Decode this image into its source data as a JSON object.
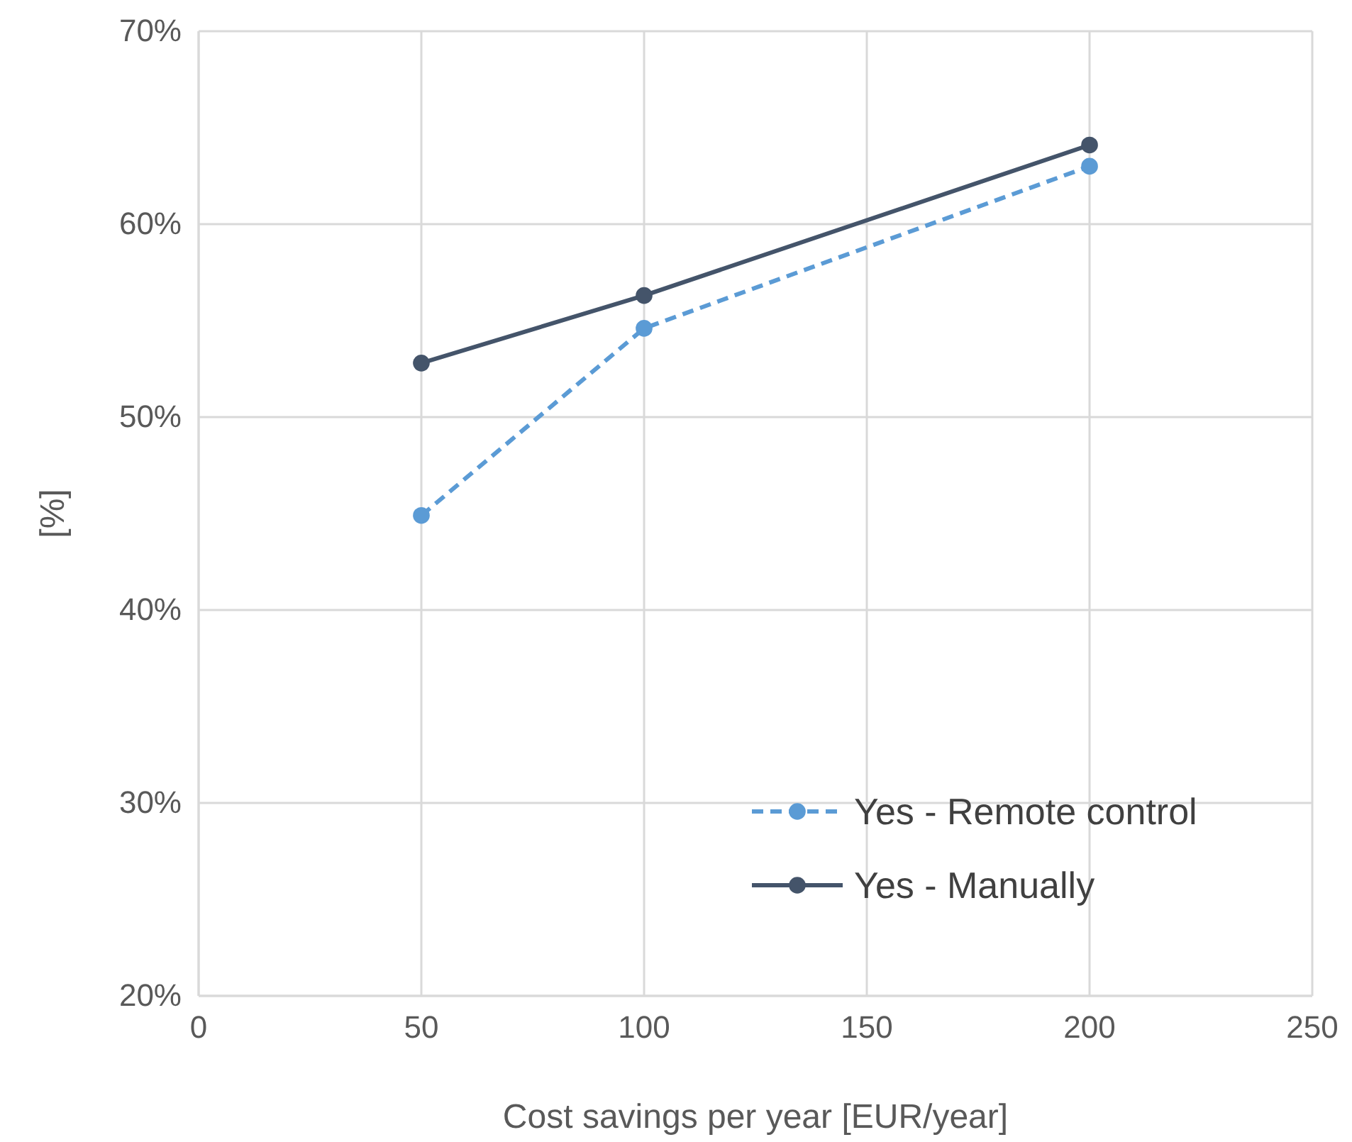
{
  "chart_data": {
    "type": "line",
    "xlabel": "Cost savings per year [EUR/year]",
    "ylabel": "[%]",
    "x": [
      50,
      100,
      200
    ],
    "series": [
      {
        "name": "Yes - Remote control",
        "color": "#5b9bd5",
        "values": [
          44.9,
          54.6,
          63.0
        ],
        "line_style": "dashed"
      },
      {
        "name": "Yes - Manually",
        "color": "#44546a",
        "values": [
          52.8,
          56.3,
          64.1
        ],
        "line_style": "solid"
      }
    ],
    "xlim": [
      0,
      250
    ],
    "xticks": [
      0,
      50,
      100,
      150,
      200,
      250
    ],
    "ylim": [
      20,
      70
    ],
    "yticks": [
      {
        "value": 20,
        "label": "20%"
      },
      {
        "value": 30,
        "label": "30%"
      },
      {
        "value": 40,
        "label": "40%"
      },
      {
        "value": 50,
        "label": "50%"
      },
      {
        "value": 60,
        "label": "60%"
      },
      {
        "value": 70,
        "label": "70%"
      }
    ],
    "grid": true,
    "legend": "bottom right",
    "marker": "circle"
  }
}
